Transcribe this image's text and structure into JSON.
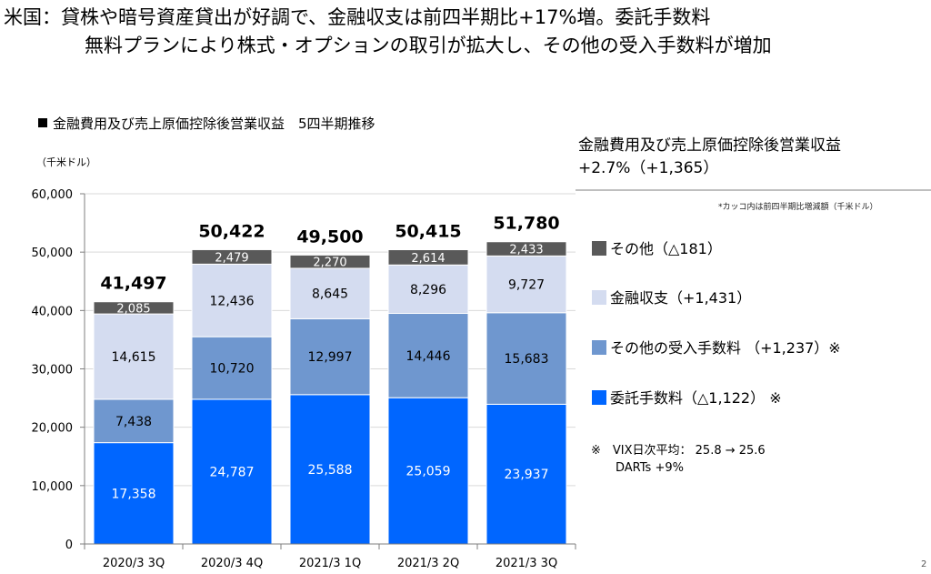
{
  "headline": {
    "line1": "米国：貸株や暗号資産貸出が好調で、金融収支は前四半期比+17%増。委託手数料",
    "line2": "無料プランにより株式・オプションの取引が拡大し、その他の受入手数料が増加"
  },
  "chart_data": {
    "type": "bar",
    "stacked": true,
    "title": "金融費用及び売上原価控除後営業収益　5四半期推移",
    "unit": "（千米ドル）",
    "categories": [
      "2020/3 3Q",
      "2020/3 4Q",
      "2021/3 1Q",
      "2021/3 2Q",
      "2021/3 3Q"
    ],
    "series": [
      {
        "name": "委託手数料",
        "color": "#0066ff",
        "values": [
          17358,
          24787,
          25588,
          25059,
          23937
        ]
      },
      {
        "name": "その他の受入手数料",
        "color": "#6f97cf",
        "values": [
          7438,
          10720,
          12997,
          14446,
          15683
        ]
      },
      {
        "name": "金融収支",
        "color": "#d4dcf0",
        "values": [
          14615,
          12436,
          8645,
          8296,
          9727
        ]
      },
      {
        "name": "その他",
        "color": "#595959",
        "values": [
          2085,
          2479,
          2270,
          2614,
          2433
        ]
      }
    ],
    "totals": [
      41497,
      50422,
      49500,
      50415,
      51780
    ],
    "ylim": [
      0,
      60000
    ],
    "yticks": [
      0,
      10000,
      20000,
      30000,
      40000,
      50000,
      60000
    ],
    "ytick_labels": [
      "0",
      "10,000",
      "20,000",
      "30,000",
      "40,000",
      "50,000",
      "60,000"
    ],
    "category_labels": [
      "2020/3 3Q",
      "2020/3 4Q",
      "2021/3 1Q",
      "2021/3 2Q",
      "2021/3 3Q"
    ],
    "value_labels": [
      [
        "17,358",
        "24,787",
        "25,588",
        "25,059",
        "23,937"
      ],
      [
        "7,438",
        "10,720",
        "12,997",
        "14,446",
        "15,683"
      ],
      [
        "14,615",
        "12,436",
        "8,645",
        "8,296",
        "9,727"
      ],
      [
        "2,085",
        "2,479",
        "2,270",
        "2,614",
        "2,433"
      ]
    ],
    "total_labels": [
      "41,497",
      "50,422",
      "49,500",
      "50,415",
      "51,780"
    ],
    "grid": true,
    "legend_position": "right"
  },
  "summary": {
    "title": "金融費用及び売上原価控除後営業収益",
    "change": "+2.7%（+1,365）",
    "note": "*カッコ内は前四半期比増減額（千米ドル）"
  },
  "legend": [
    {
      "label": "その他（△181）",
      "color": "#595959"
    },
    {
      "label": "金融収支（+1,431）",
      "color": "#d4dcf0"
    },
    {
      "label": "その他の受入手数料 （+1,237）※",
      "color": "#6f97cf"
    },
    {
      "label": "委託手数料（△1,122） ※",
      "color": "#0066ff"
    }
  ],
  "footnote": {
    "line1": "※　VIX日次平均：  25.8 → 25.6",
    "line2": "DARTs +9%"
  },
  "page_number": "2"
}
